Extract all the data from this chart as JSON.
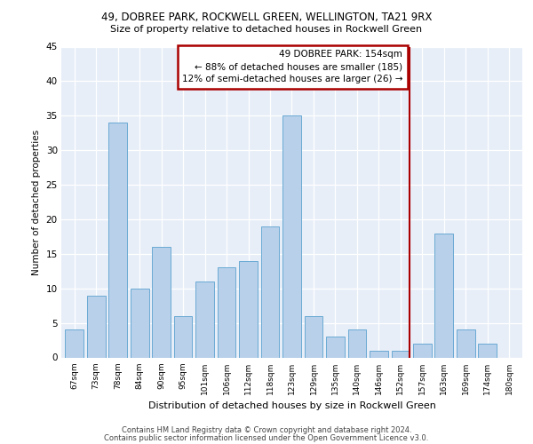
{
  "title1": "49, DOBREE PARK, ROCKWELL GREEN, WELLINGTON, TA21 9RX",
  "title2": "Size of property relative to detached houses in Rockwell Green",
  "xlabel": "Distribution of detached houses by size in Rockwell Green",
  "ylabel": "Number of detached properties",
  "footer1": "Contains HM Land Registry data © Crown copyright and database right 2024.",
  "footer2": "Contains public sector information licensed under the Open Government Licence v3.0.",
  "categories": [
    "67sqm",
    "73sqm",
    "78sqm",
    "84sqm",
    "90sqm",
    "95sqm",
    "101sqm",
    "106sqm",
    "112sqm",
    "118sqm",
    "123sqm",
    "129sqm",
    "135sqm",
    "140sqm",
    "146sqm",
    "152sqm",
    "157sqm",
    "163sqm",
    "169sqm",
    "174sqm",
    "180sqm"
  ],
  "values": [
    4,
    9,
    34,
    10,
    16,
    6,
    11,
    13,
    14,
    19,
    35,
    6,
    3,
    4,
    1,
    1,
    2,
    18,
    4,
    2,
    0
  ],
  "bar_color": "#b8d0ea",
  "bar_edge_color": "#6aaad4",
  "background_color": "#e8eef8",
  "grid_color": "#ffffff",
  "annotation_box_text": "49 DOBREE PARK: 154sqm\n← 88% of detached houses are smaller (185)\n12% of semi-detached houses are larger (26) →",
  "annotation_box_color": "#ffffff",
  "annotation_box_edge_color": "#aa0000",
  "annotation_line_color": "#aa0000",
  "ylim": [
    0,
    45
  ],
  "yticks": [
    0,
    5,
    10,
    15,
    20,
    25,
    30,
    35,
    40,
    45
  ]
}
